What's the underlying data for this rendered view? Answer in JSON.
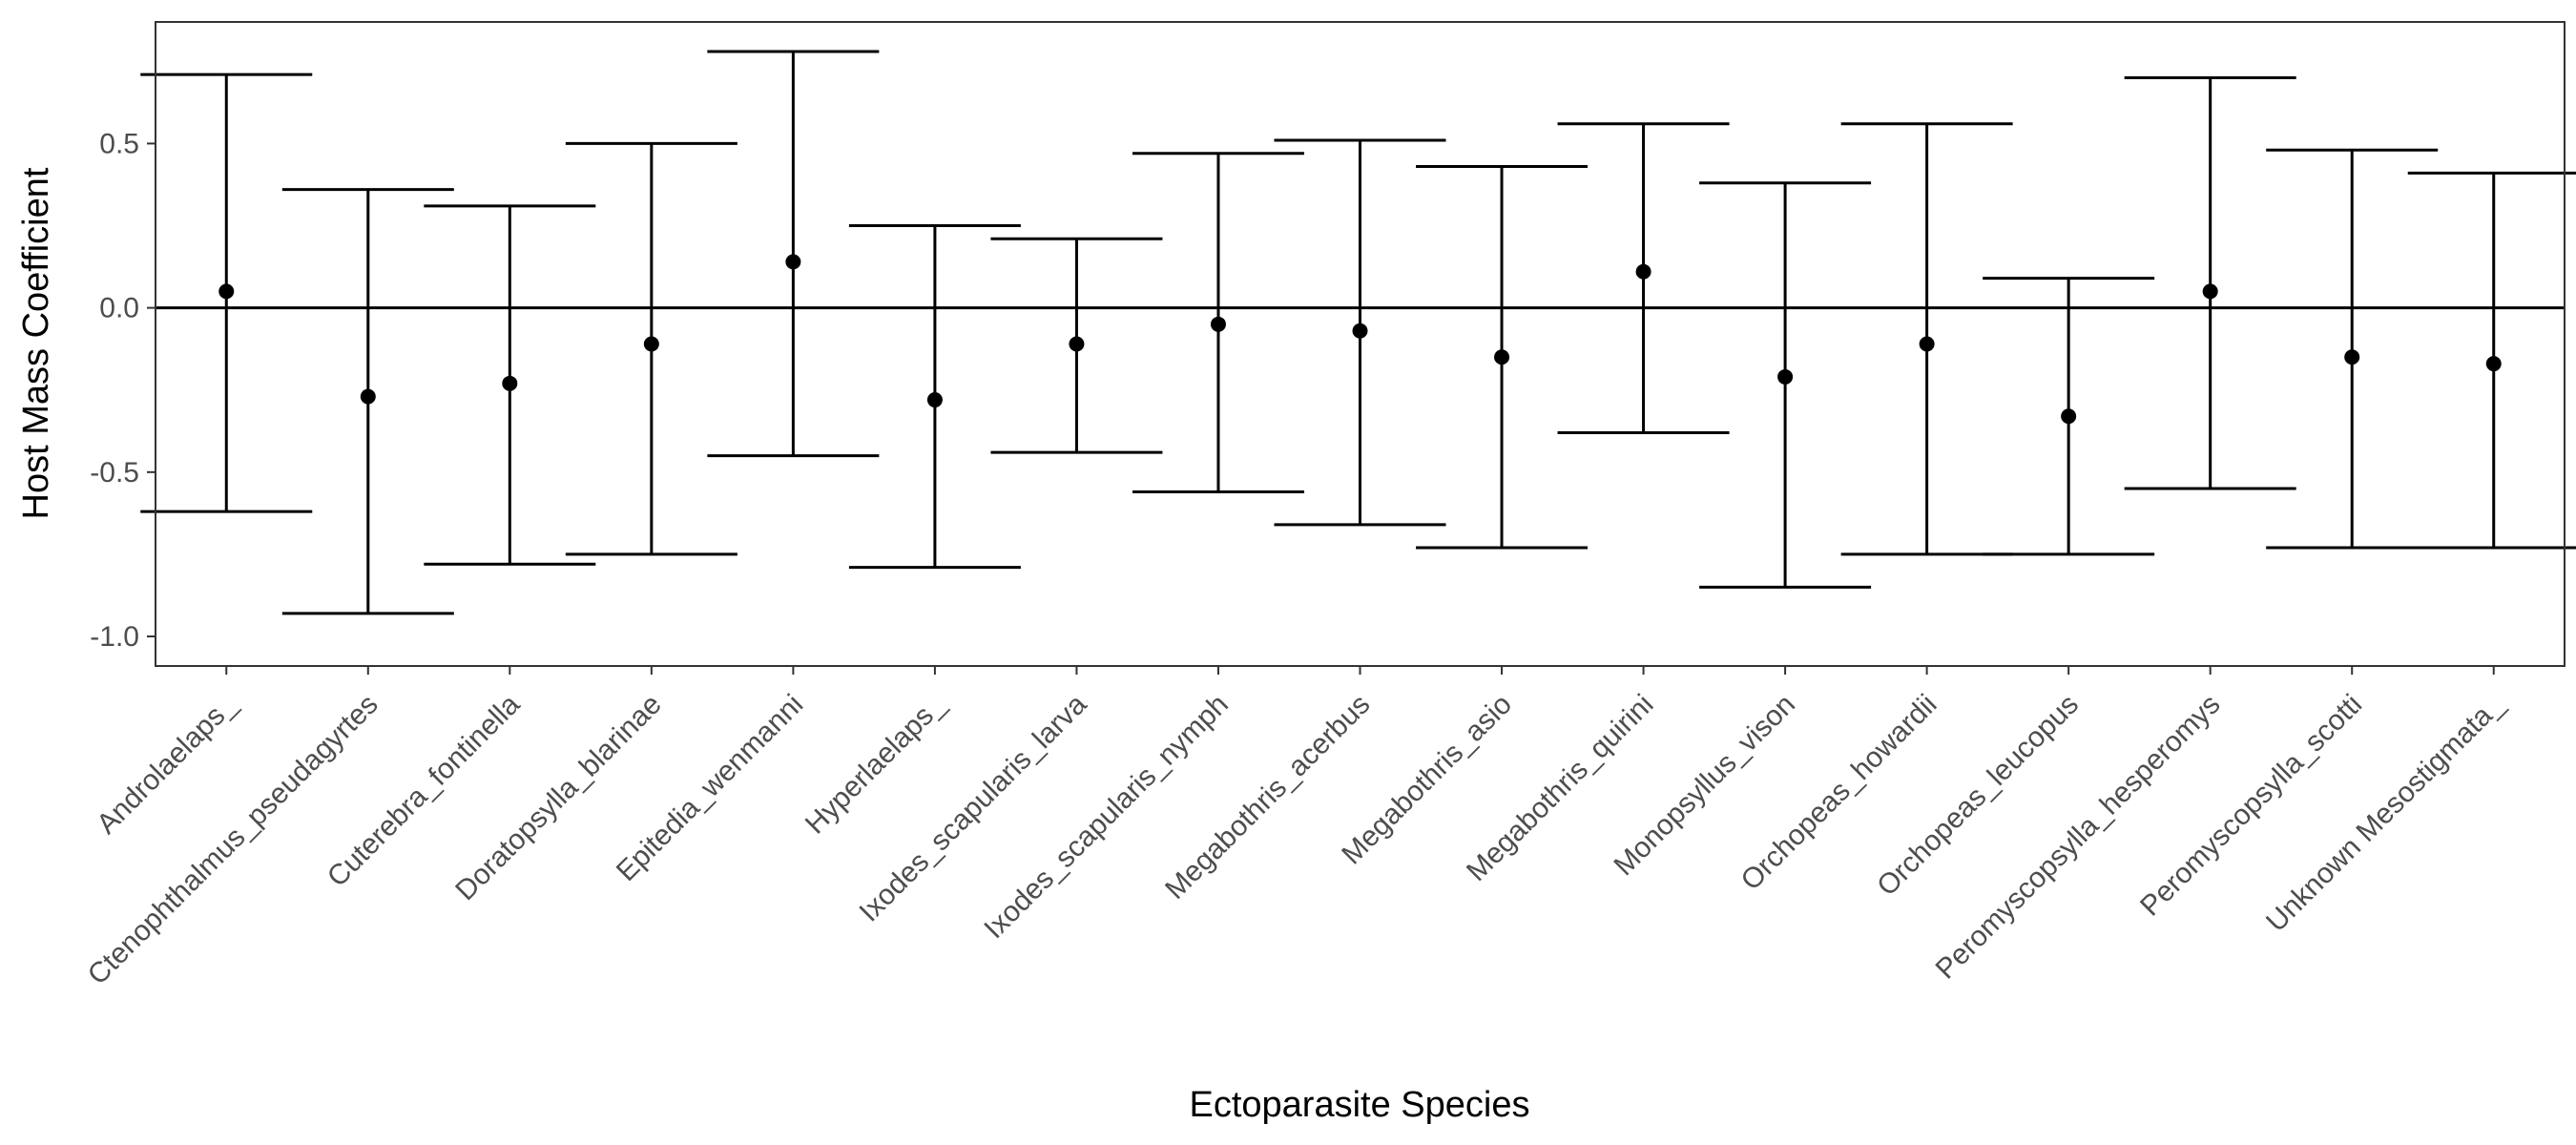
{
  "chart_data": {
    "type": "errorbar",
    "xlabel": "Ectoparasite Species",
    "ylabel": "Host Mass Coefficient",
    "ylim": [
      -1.09,
      0.87
    ],
    "yticks": [
      -1.0,
      -0.5,
      0.0,
      0.5
    ],
    "ytick_labels": [
      "-1.0",
      "-0.5",
      "0.0",
      "0.5"
    ],
    "reference_line": 0,
    "grid": false,
    "categories": [
      "Androlaelaps_",
      "Ctenophthalmus_pseudagyrtes",
      "Cuterebra_fontinella",
      "Doratopsylla_blarinae",
      "Epitedia_wenmanni",
      "Hyperlaelaps_",
      "Ixodes_scapularis_larva",
      "Ixodes_scapularis_nymph",
      "Megabothris_acerbus",
      "Megabothris_asio",
      "Megabothris_quirini",
      "Monopsyllus_vison",
      "Orchopeas_howardii",
      "Orchopeas_leucopus",
      "Peromyscopsylla_hesperomys",
      "Peromyscopsylla_scotti",
      "Unknown Mesostigmata_"
    ],
    "estimate": [
      0.05,
      -0.27,
      -0.23,
      -0.11,
      0.14,
      -0.28,
      -0.11,
      -0.05,
      -0.07,
      -0.15,
      0.11,
      -0.21,
      -0.11,
      -0.33,
      0.05,
      -0.15,
      -0.17
    ],
    "lower": [
      -0.62,
      -0.93,
      -0.78,
      -0.75,
      -0.45,
      -0.79,
      -0.44,
      -0.56,
      -0.66,
      -0.73,
      -0.38,
      -0.85,
      -0.75,
      -0.75,
      -0.55,
      -0.73,
      -0.73
    ],
    "upper": [
      0.71,
      0.36,
      0.31,
      0.5,
      0.78,
      0.25,
      0.21,
      0.47,
      0.51,
      0.43,
      0.56,
      0.38,
      0.56,
      0.09,
      0.7,
      0.48,
      0.41
    ]
  }
}
